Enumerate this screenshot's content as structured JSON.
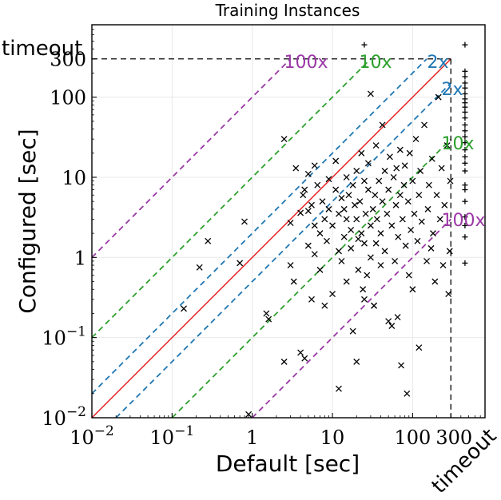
{
  "chart_data": {
    "type": "scatter",
    "title": "Training Instances",
    "xlabel": "Default [sec]",
    "ylabel": "Configured [sec]",
    "scale": "log",
    "xlim": [
      0.01,
      800
    ],
    "ylim": [
      0.01,
      800
    ],
    "cutoff": 300,
    "x_ticks": [
      {
        "value": 0.01,
        "base": "10",
        "exp": "−2"
      },
      {
        "value": 0.1,
        "base": "10",
        "exp": "−1"
      },
      {
        "value": 1,
        "label": "1"
      },
      {
        "value": 10,
        "label": "10"
      },
      {
        "value": 100,
        "label": "100"
      },
      {
        "value": 300,
        "label": "300"
      }
    ],
    "y_ticks": [
      {
        "value": 0.01,
        "base": "10",
        "exp": "−2"
      },
      {
        "value": 0.1,
        "base": "10",
        "exp": "−1"
      },
      {
        "value": 1,
        "label": "1"
      },
      {
        "value": 10,
        "label": "10"
      },
      {
        "value": 100,
        "label": "100"
      },
      {
        "value": 300,
        "label": "300"
      }
    ],
    "timeout_label": "timeout",
    "ratio_lines": [
      {
        "factor": 2,
        "label": "2x",
        "color": "#1f77b4"
      },
      {
        "factor": 10,
        "label": "10x",
        "color": "#2ca02c"
      },
      {
        "factor": 100,
        "label": "100x",
        "color": "#9b38a6"
      }
    ],
    "diagonal_color": "#e31a1c",
    "points": [
      [
        0.14,
        0.23
      ],
      [
        0.22,
        0.75
      ],
      [
        0.28,
        1.6
      ],
      [
        0.7,
        0.85
      ],
      [
        0.8,
        2.8
      ],
      [
        0.9,
        0.011
      ],
      [
        1.5,
        0.2
      ],
      [
        1.6,
        0.17
      ],
      [
        2.5,
        0.05
      ],
      [
        2.5,
        30
      ],
      [
        3,
        0.8
      ],
      [
        3,
        2.7
      ],
      [
        3.3,
        0.5
      ],
      [
        3.5,
        13
      ],
      [
        4,
        0.065
      ],
      [
        4,
        3.6
      ],
      [
        4.3,
        6
      ],
      [
        4.5,
        0.055
      ],
      [
        4.5,
        7
      ],
      [
        5,
        3.8
      ],
      [
        5,
        11
      ],
      [
        5,
        1.4
      ],
      [
        5.5,
        0.3
      ],
      [
        5.5,
        4.5
      ],
      [
        6,
        2.5
      ],
      [
        6,
        14
      ],
      [
        6,
        1.1
      ],
      [
        6.5,
        8
      ],
      [
        7,
        0.7
      ],
      [
        7,
        2
      ],
      [
        7.5,
        5
      ],
      [
        8,
        0.25
      ],
      [
        8,
        3
      ],
      [
        8.5,
        1.6
      ],
      [
        9,
        9.5
      ],
      [
        9,
        4
      ],
      [
        10,
        2.5
      ],
      [
        10,
        0.35
      ],
      [
        11,
        7
      ],
      [
        11,
        16
      ],
      [
        12,
        1.2
      ],
      [
        12,
        3.5
      ],
      [
        12,
        0.023
      ],
      [
        13,
        5.5
      ],
      [
        13,
        0.9
      ],
      [
        14,
        4
      ],
      [
        14,
        1.8
      ],
      [
        15,
        10
      ],
      [
        15,
        0.5
      ],
      [
        15,
        3
      ],
      [
        16,
        6
      ],
      [
        17,
        2.2
      ],
      [
        17,
        1.3
      ],
      [
        18,
        8
      ],
      [
        18,
        0.12
      ],
      [
        19,
        4.5
      ],
      [
        20,
        3
      ],
      [
        20,
        12
      ],
      [
        20,
        0.05
      ],
      [
        21,
        1.7
      ],
      [
        21,
        0.7
      ],
      [
        22,
        5
      ],
      [
        23,
        20
      ],
      [
        23,
        2
      ],
      [
        24,
        0.4
      ],
      [
        25,
        9
      ],
      [
        25,
        0.3
      ],
      [
        25,
        1.5
      ],
      [
        25,
        450
      ],
      [
        26,
        3.5
      ],
      [
        27,
        0.6
      ],
      [
        28,
        7
      ],
      [
        28,
        15
      ],
      [
        30,
        2.5
      ],
      [
        30,
        110
      ],
      [
        30,
        1
      ],
      [
        32,
        4
      ],
      [
        33,
        0.25
      ],
      [
        33,
        0.25
      ],
      [
        34,
        6
      ],
      [
        35,
        1.5
      ],
      [
        35,
        25
      ],
      [
        36,
        3
      ],
      [
        38,
        9
      ],
      [
        40,
        2
      ],
      [
        40,
        0.8
      ],
      [
        42,
        5
      ],
      [
        42,
        45
      ],
      [
        45,
        12
      ],
      [
        45,
        1.2
      ],
      [
        48,
        3.5
      ],
      [
        50,
        7
      ],
      [
        50,
        0.16
      ],
      [
        52,
        18
      ],
      [
        55,
        2.5
      ],
      [
        55,
        0.14
      ],
      [
        58,
        10
      ],
      [
        60,
        0.9
      ],
      [
        62,
        4.5
      ],
      [
        63,
        13
      ],
      [
        65,
        0.18
      ],
      [
        66,
        1.8
      ],
      [
        70,
        6
      ],
      [
        70,
        22
      ],
      [
        72,
        0.045
      ],
      [
        75,
        3
      ],
      [
        78,
        8
      ],
      [
        80,
        14
      ],
      [
        82,
        1.4
      ],
      [
        85,
        0.02
      ],
      [
        88,
        5
      ],
      [
        90,
        0.6
      ],
      [
        92,
        20
      ],
      [
        95,
        2.2
      ],
      [
        100,
        9
      ],
      [
        100,
        0.4
      ],
      [
        105,
        3.5
      ],
      [
        110,
        30
      ],
      [
        115,
        1.6
      ],
      [
        120,
        6
      ],
      [
        120,
        0.075
      ],
      [
        125,
        12
      ],
      [
        130,
        2.8
      ],
      [
        140,
        45
      ],
      [
        150,
        0.9
      ],
      [
        155,
        4
      ],
      [
        160,
        8
      ],
      [
        170,
        1.3
      ],
      [
        175,
        17
      ],
      [
        180,
        2
      ],
      [
        190,
        0.5
      ],
      [
        200,
        6
      ],
      [
        210,
        100
      ],
      [
        220,
        3
      ],
      [
        230,
        13
      ],
      [
        240,
        0.8
      ],
      [
        250,
        4.5
      ],
      [
        270,
        25
      ],
      [
        280,
        0.35
      ],
      [
        290,
        1.2
      ],
      [
        295,
        9
      ]
    ],
    "timeout_points": [
      [
        450,
        3.2
      ],
      [
        450,
        5
      ],
      [
        450,
        7
      ],
      [
        450,
        8
      ],
      [
        450,
        12
      ],
      [
        450,
        15
      ],
      [
        450,
        18
      ],
      [
        450,
        22
      ],
      [
        450,
        27
      ],
      [
        450,
        32
      ],
      [
        450,
        38
      ],
      [
        450,
        45
      ],
      [
        450,
        55
      ],
      [
        450,
        65
      ],
      [
        450,
        75
      ],
      [
        450,
        85
      ],
      [
        450,
        95
      ],
      [
        450,
        110
      ],
      [
        450,
        130
      ],
      [
        450,
        150
      ],
      [
        450,
        180
      ],
      [
        450,
        210
      ],
      [
        450,
        450
      ],
      [
        450,
        0.85
      ],
      [
        450,
        2.5
      ],
      [
        450,
        1.8
      ]
    ],
    "points_beyond_y": [
      [
        25,
        450
      ]
    ]
  }
}
